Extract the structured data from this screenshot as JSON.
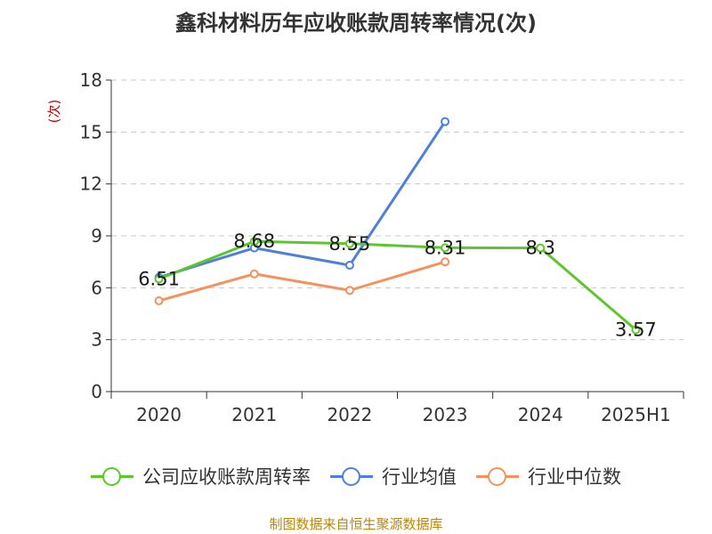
{
  "title": "鑫科材料历年应收账款周转率情况(次)",
  "source": "制图数据来自恒生聚源数据库",
  "chart_data": {
    "type": "line",
    "title": "鑫科材料历年应收账款周转率情况(次)",
    "ylabel": "(次)",
    "xlabel": "",
    "categories": [
      "2020",
      "2021",
      "2022",
      "2023",
      "2024",
      "2025H1"
    ],
    "ylim": [
      0,
      18
    ],
    "yticks": [
      0,
      3,
      6,
      9,
      12,
      15,
      18
    ],
    "grid": true,
    "legend_position": "bottom",
    "series": [
      {
        "name": "公司应收账款周转率",
        "color": "#5cc72a",
        "values": [
          6.51,
          8.68,
          8.55,
          8.31,
          8.3,
          3.57
        ],
        "labels": [
          "6.51",
          "8.68",
          "8.55",
          "8.31",
          "8.3",
          "3.57"
        ]
      },
      {
        "name": "行业均值",
        "color": "#4f7fdc",
        "values": [
          6.6,
          8.3,
          7.3,
          15.6,
          null,
          null
        ]
      },
      {
        "name": "行业中位数",
        "color": "#f4915c",
        "values": [
          5.25,
          6.8,
          5.85,
          7.5,
          null,
          null
        ]
      }
    ]
  }
}
